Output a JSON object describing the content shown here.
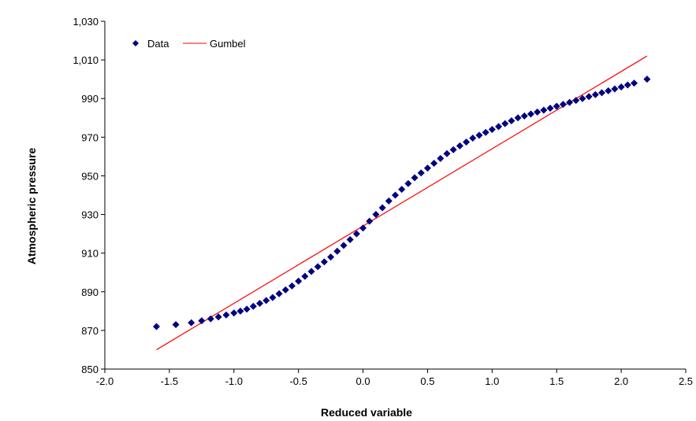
{
  "chart_data": {
    "type": "scatter",
    "xlabel": "Reduced variable",
    "ylabel": "Atmospheric pressure",
    "xlim": [
      -2.0,
      2.5
    ],
    "ylim": [
      850,
      1030
    ],
    "x_ticks": [
      "-2.0",
      "-1.5",
      "-1.0",
      "-0.5",
      "0.0",
      "0.5",
      "1.0",
      "1.5",
      "2.0",
      "2.5"
    ],
    "y_ticks": [
      "850",
      "870",
      "890",
      "910",
      "930",
      "950",
      "970",
      "990",
      "1,010",
      "1,030"
    ],
    "grid": false,
    "legend": {
      "position": "top-left",
      "entries": [
        {
          "label": "Data",
          "marker": "diamond",
          "color": "#00007f"
        },
        {
          "label": "Gumbel",
          "marker": "line",
          "color": "#ff0000"
        }
      ]
    },
    "series": [
      {
        "name": "Data",
        "kind": "scatter",
        "color": "#00007f",
        "points": [
          [
            -1.6,
            872
          ],
          [
            -1.45,
            873
          ],
          [
            -1.33,
            874
          ],
          [
            -1.25,
            875
          ],
          [
            -1.18,
            876
          ],
          [
            -1.12,
            877
          ],
          [
            -1.06,
            878
          ],
          [
            -1.0,
            879
          ],
          [
            -0.95,
            880
          ],
          [
            -0.9,
            881
          ],
          [
            -0.85,
            882.5
          ],
          [
            -0.8,
            884
          ],
          [
            -0.75,
            885.5
          ],
          [
            -0.7,
            887
          ],
          [
            -0.65,
            889
          ],
          [
            -0.6,
            891
          ],
          [
            -0.55,
            893
          ],
          [
            -0.5,
            895.5
          ],
          [
            -0.45,
            898
          ],
          [
            -0.4,
            900.5
          ],
          [
            -0.35,
            903
          ],
          [
            -0.3,
            905.5
          ],
          [
            -0.25,
            908
          ],
          [
            -0.2,
            911
          ],
          [
            -0.15,
            914
          ],
          [
            -0.1,
            917
          ],
          [
            -0.05,
            920
          ],
          [
            0.0,
            923
          ],
          [
            0.05,
            926.5
          ],
          [
            0.1,
            930
          ],
          [
            0.15,
            933.5
          ],
          [
            0.2,
            937
          ],
          [
            0.25,
            940
          ],
          [
            0.3,
            943
          ],
          [
            0.35,
            946
          ],
          [
            0.4,
            949
          ],
          [
            0.45,
            951.5
          ],
          [
            0.5,
            954
          ],
          [
            0.55,
            956.5
          ],
          [
            0.6,
            959
          ],
          [
            0.65,
            961.5
          ],
          [
            0.7,
            963.5
          ],
          [
            0.75,
            965.5
          ],
          [
            0.8,
            967.5
          ],
          [
            0.85,
            969.5
          ],
          [
            0.9,
            971
          ],
          [
            0.95,
            972.5
          ],
          [
            1.0,
            974
          ],
          [
            1.05,
            975.5
          ],
          [
            1.1,
            977
          ],
          [
            1.15,
            978.5
          ],
          [
            1.2,
            980
          ],
          [
            1.25,
            981
          ],
          [
            1.3,
            982
          ],
          [
            1.35,
            983
          ],
          [
            1.4,
            984
          ],
          [
            1.45,
            985
          ],
          [
            1.5,
            986
          ],
          [
            1.55,
            987
          ],
          [
            1.6,
            988
          ],
          [
            1.65,
            989
          ],
          [
            1.7,
            990
          ],
          [
            1.75,
            991
          ],
          [
            1.8,
            992
          ],
          [
            1.85,
            993
          ],
          [
            1.9,
            994
          ],
          [
            1.95,
            995
          ],
          [
            2.0,
            996
          ],
          [
            2.05,
            997
          ],
          [
            2.1,
            998
          ],
          [
            2.2,
            1000
          ]
        ]
      },
      {
        "name": "Gumbel",
        "kind": "line",
        "color": "#ff0000",
        "points": [
          [
            -1.6,
            860
          ],
          [
            2.2,
            1012
          ]
        ]
      }
    ]
  }
}
